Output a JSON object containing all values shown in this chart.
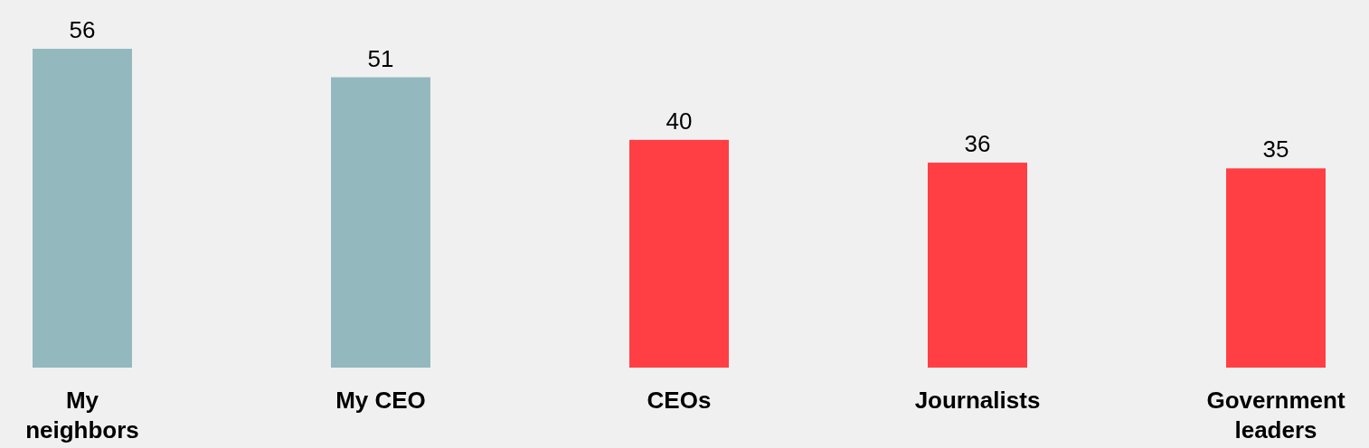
{
  "chart_data": {
    "type": "bar",
    "categories": [
      "My neighbors",
      "My CEO",
      "CEOs",
      "Journalists",
      "Government leaders"
    ],
    "values": [
      56,
      51,
      40,
      36,
      35
    ],
    "colors": [
      "#93b9bf",
      "#93b9bf",
      "#ff3f44",
      "#ff3f44",
      "#ff3f44"
    ],
    "data_labels": true
  }
}
